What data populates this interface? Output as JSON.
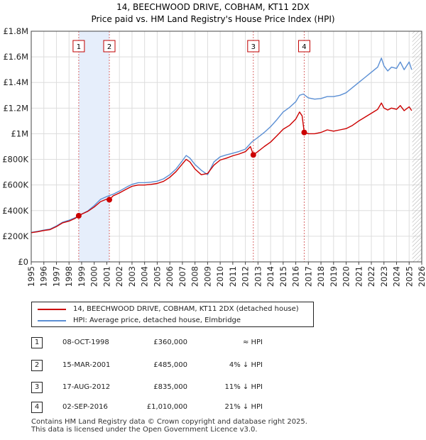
{
  "chart_data": {
    "type": "line",
    "title": "14, BEECHWOOD DRIVE, COBHAM, KT11 2DX",
    "subtitle": "Price paid vs. HM Land Registry's House Price Index (HPI)",
    "xlim": [
      1995,
      2026
    ],
    "ylim": [
      0,
      1800000
    ],
    "x_ticks": [
      "1995",
      "1996",
      "1997",
      "1998",
      "1999",
      "2000",
      "2001",
      "2002",
      "2003",
      "2004",
      "2005",
      "2006",
      "2007",
      "2008",
      "2009",
      "2010",
      "2011",
      "2012",
      "2013",
      "2014",
      "2015",
      "2016",
      "2017",
      "2018",
      "2019",
      "2020",
      "2021",
      "2022",
      "2023",
      "2024",
      "2025",
      "2026"
    ],
    "y_ticks": [
      {
        "value": 0,
        "label": "£0"
      },
      {
        "value": 200000,
        "label": "£200K"
      },
      {
        "value": 400000,
        "label": "£400K"
      },
      {
        "value": 600000,
        "label": "£600K"
      },
      {
        "value": 800000,
        "label": "£800K"
      },
      {
        "value": 1000000,
        "label": "£1M"
      },
      {
        "value": 1200000,
        "label": "£1.2M"
      },
      {
        "value": 1400000,
        "label": "£1.4M"
      },
      {
        "value": 1600000,
        "label": "£1.6M"
      },
      {
        "value": 1800000,
        "label": "£1.8M"
      }
    ],
    "grid": true,
    "shaded_ranges": [
      [
        1998.77,
        2001.2
      ]
    ],
    "future_hatch_from": 2025.25,
    "series": [
      {
        "name": "14, BEECHWOOD DRIVE, COBHAM, KT11 2DX (detached house)",
        "color": "#cc0000",
        "x": [
          1995.0,
          1995.5,
          1996.0,
          1996.5,
          1997.0,
          1997.5,
          1998.0,
          1998.5,
          1998.77,
          1999.0,
          1999.5,
          2000.0,
          2000.5,
          2001.0,
          2001.2,
          2001.5,
          2002.0,
          2002.5,
          2003.0,
          2003.5,
          2004.0,
          2004.5,
          2005.0,
          2005.5,
          2006.0,
          2006.5,
          2007.0,
          2007.3,
          2007.6,
          2008.0,
          2008.5,
          2009.0,
          2009.5,
          2010.0,
          2010.5,
          2011.0,
          2011.5,
          2012.0,
          2012.4,
          2012.63,
          2013.0,
          2013.5,
          2014.0,
          2014.5,
          2015.0,
          2015.5,
          2016.0,
          2016.3,
          2016.5,
          2016.67,
          2017.0,
          2017.5,
          2018.0,
          2018.5,
          2019.0,
          2019.5,
          2020.0,
          2020.5,
          2021.0,
          2021.5,
          2022.0,
          2022.5,
          2022.8,
          2023.0,
          2023.3,
          2023.6,
          2024.0,
          2024.3,
          2024.6,
          2025.0,
          2025.2
        ],
        "values": [
          228000,
          235000,
          245000,
          252000,
          275000,
          305000,
          318000,
          340000,
          360000,
          372000,
          395000,
          428000,
          470000,
          490000,
          485000,
          515000,
          538000,
          565000,
          590000,
          600000,
          600000,
          605000,
          612000,
          628000,
          660000,
          705000,
          765000,
          800000,
          780000,
          725000,
          680000,
          690000,
          755000,
          795000,
          810000,
          828000,
          842000,
          860000,
          900000,
          835000,
          862000,
          900000,
          935000,
          985000,
          1035000,
          1065000,
          1115000,
          1170000,
          1140000,
          1010000,
          1000000,
          1000000,
          1010000,
          1030000,
          1020000,
          1030000,
          1040000,
          1065000,
          1100000,
          1130000,
          1160000,
          1190000,
          1240000,
          1200000,
          1185000,
          1200000,
          1190000,
          1220000,
          1180000,
          1210000,
          1180000
        ]
      },
      {
        "name": "HPI: Average price, detached house, Elmbridge",
        "color": "#5b8fd4",
        "x": [
          1995.0,
          1995.5,
          1996.0,
          1996.5,
          1997.0,
          1997.5,
          1998.0,
          1998.5,
          1999.0,
          1999.5,
          2000.0,
          2000.5,
          2001.0,
          2001.5,
          2002.0,
          2002.5,
          2003.0,
          2003.5,
          2004.0,
          2004.5,
          2005.0,
          2005.5,
          2006.0,
          2006.5,
          2007.0,
          2007.3,
          2007.6,
          2008.0,
          2008.5,
          2009.0,
          2009.5,
          2010.0,
          2010.5,
          2011.0,
          2011.5,
          2012.0,
          2012.5,
          2013.0,
          2013.5,
          2014.0,
          2014.5,
          2015.0,
          2015.5,
          2016.0,
          2016.3,
          2016.6,
          2017.0,
          2017.5,
          2018.0,
          2018.5,
          2019.0,
          2019.5,
          2020.0,
          2020.5,
          2021.0,
          2021.5,
          2022.0,
          2022.5,
          2022.8,
          2023.0,
          2023.3,
          2023.6,
          2024.0,
          2024.3,
          2024.6,
          2025.0,
          2025.2
        ],
        "values": [
          230000,
          238000,
          248000,
          256000,
          280000,
          310000,
          325000,
          345000,
          372000,
          398000,
          440000,
          488000,
          510000,
          528000,
          552000,
          580000,
          605000,
          618000,
          618000,
          622000,
          630000,
          648000,
          680000,
          725000,
          790000,
          830000,
          810000,
          760000,
          715000,
          680000,
          780000,
          820000,
          835000,
          848000,
          862000,
          880000,
          935000,
          972000,
          1010000,
          1055000,
          1110000,
          1170000,
          1205000,
          1250000,
          1300000,
          1310000,
          1280000,
          1270000,
          1275000,
          1290000,
          1290000,
          1300000,
          1320000,
          1360000,
          1400000,
          1440000,
          1480000,
          1520000,
          1590000,
          1530000,
          1490000,
          1520000,
          1510000,
          1560000,
          1500000,
          1560000,
          1500000
        ]
      }
    ],
    "sales": [
      {
        "id": "1",
        "x": 1998.77,
        "value": 360000,
        "date": "08-OCT-1998",
        "price": "£360,000",
        "hpi": "≈ HPI"
      },
      {
        "id": "2",
        "x": 2001.2,
        "value": 485000,
        "date": "15-MAR-2001",
        "price": "£485,000",
        "hpi": "4% ↓ HPI"
      },
      {
        "id": "3",
        "x": 2012.63,
        "value": 835000,
        "date": "17-AUG-2012",
        "price": "£835,000",
        "hpi": "11% ↓ HPI"
      },
      {
        "id": "4",
        "x": 2016.67,
        "value": 1010000,
        "date": "02-SEP-2016",
        "price": "£1,010,000",
        "hpi": "21% ↓ HPI"
      }
    ]
  },
  "colors": {
    "property": "#cc0000",
    "hpi": "#5b8fd4",
    "shade": "#e6eefb",
    "grid": "#dddddd",
    "vline": "#d96b6b"
  },
  "legend": {
    "property_label": "14, BEECHWOOD DRIVE, COBHAM, KT11 2DX (detached house)",
    "hpi_label": "HPI: Average price, detached house, Elmbridge"
  },
  "footer": {
    "line1": "Contains HM Land Registry data © Crown copyright and database right 2025.",
    "line2": "This data is licensed under the Open Government Licence v3.0."
  }
}
